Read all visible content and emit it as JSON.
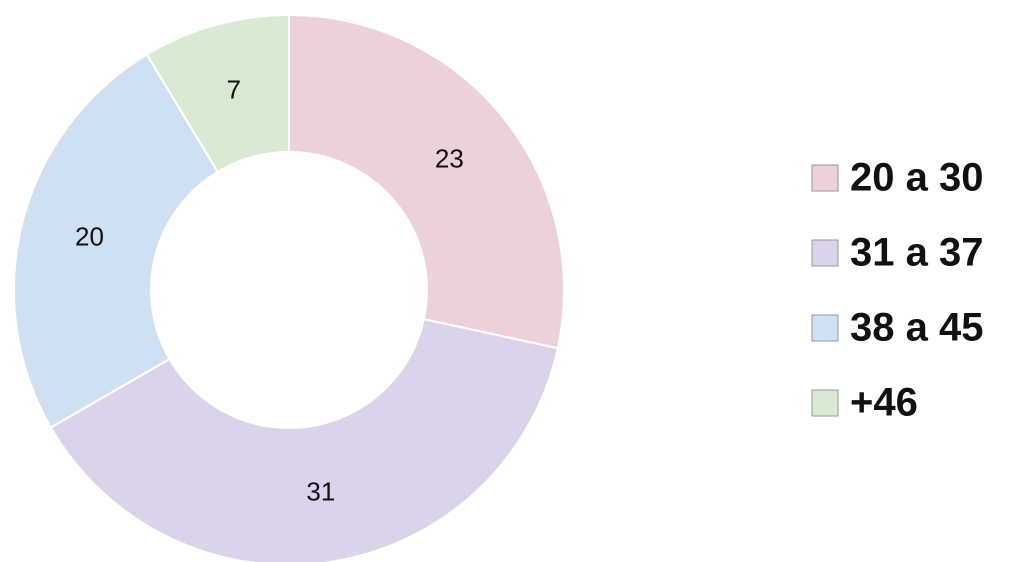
{
  "chart_data": {
    "type": "pie",
    "categories": [
      "20 a 30",
      "31 a 37",
      "38 a 45",
      "+46"
    ],
    "values": [
      23,
      31,
      20,
      7
    ],
    "colors": [
      "#ecd0dc",
      "#dad3ea",
      "#cfe0f2",
      "#d9ead3"
    ],
    "legend": "right"
  }
}
